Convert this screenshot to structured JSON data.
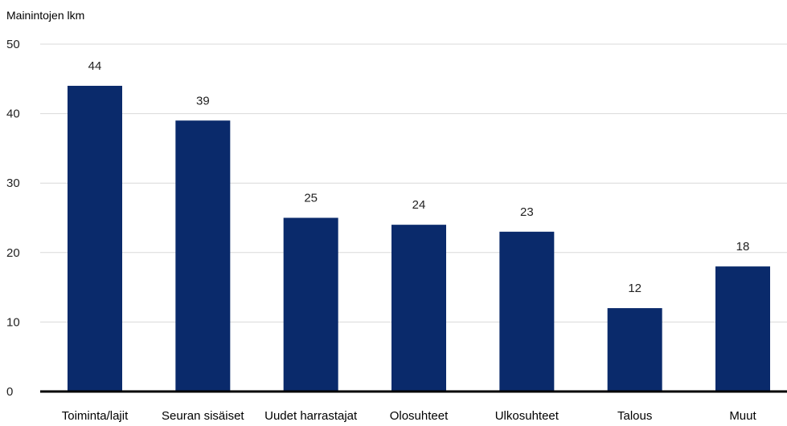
{
  "chart_data": {
    "type": "bar",
    "ylabel": "Mainintojen lkm",
    "xlabel": "",
    "categories": [
      "Toiminta/lajit",
      "Seuran sisäiset",
      "Uudet harrastajat",
      "Olosuhteet",
      "Ulkosuhteet",
      "Talous",
      "Muut"
    ],
    "values": [
      44,
      39,
      25,
      24,
      23,
      12,
      18
    ],
    "ylim": [
      0,
      50
    ],
    "yticks": [
      0,
      10,
      20,
      30,
      40,
      50
    ],
    "grid": true,
    "data_labels": true,
    "bar_color": "#0a2a6b"
  }
}
